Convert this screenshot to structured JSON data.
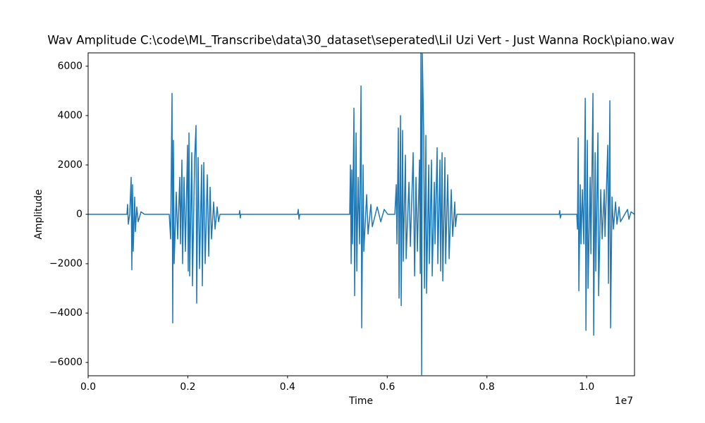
{
  "chart_data": {
    "type": "line",
    "title": "Wav Amplitude C:\\code\\ML_Transcribe\\data\\30_dataset\\seperated\\Lil Uzi Vert - Just Wanna Rock\\piano.wav",
    "x_label": "Time",
    "y_label": "Amplitude",
    "x_offset_label": "1e7",
    "xlim": [
      0,
      10960000
    ],
    "xticks": [
      {
        "value": 0,
        "label": "0.0"
      },
      {
        "value": 2000000,
        "label": "0.2"
      },
      {
        "value": 4000000,
        "label": "0.4"
      },
      {
        "value": 6000000,
        "label": "0.6"
      },
      {
        "value": 8000000,
        "label": "0.8"
      },
      {
        "value": 10000000,
        "label": "1.0"
      }
    ],
    "ylim": [
      -6540,
      6540
    ],
    "yticks": [
      {
        "value": -6000,
        "label": "−6000"
      },
      {
        "value": -4000,
        "label": "−4000"
      },
      {
        "value": -2000,
        "label": "−2000"
      },
      0,
      2000,
      4000,
      6000
    ],
    "grid": false,
    "series": [
      {
        "color": "#1f77b4",
        "x": [
          0,
          778000,
          792000,
          806000,
          834000,
          863000,
          877000,
          891000,
          905000,
          934000,
          948000,
          976000,
          1004000,
          1061000,
          1132000,
          1457000,
          1627000,
          1655000,
          1683000,
          1697000,
          1711000,
          1726000,
          1768000,
          1796000,
          1839000,
          1853000,
          1881000,
          1895000,
          1924000,
          1952000,
          1994000,
          2008000,
          2023000,
          2037000,
          2079000,
          2093000,
          2136000,
          2164000,
          2178000,
          2206000,
          2235000,
          2277000,
          2291000,
          2320000,
          2348000,
          2390000,
          2419000,
          2447000,
          2475000,
          2518000,
          2546000,
          2588000,
          2617000,
          2645000,
          3030000,
          3041000,
          3052000,
          3063000,
          4200000,
          4215000,
          4230000,
          4245000,
          5247000,
          5262000,
          5276000,
          5290000,
          5304000,
          5332000,
          5346000,
          5375000,
          5389000,
          5417000,
          5445000,
          5474000,
          5488000,
          5516000,
          5530000,
          5587000,
          5615000,
          5672000,
          5700000,
          5799000,
          5870000,
          5940000,
          6011000,
          6153000,
          6181000,
          6195000,
          6223000,
          6237000,
          6266000,
          6280000,
          6308000,
          6322000,
          6365000,
          6379000,
          6436000,
          6464000,
          6520000,
          6549000,
          6577000,
          6605000,
          6648000,
          6662000,
          6676000,
          6690000,
          6704000,
          6733000,
          6747000,
          6775000,
          6789000,
          6832000,
          6846000,
          6888000,
          6902000,
          6945000,
          6959000,
          7001000,
          7015000,
          7058000,
          7072000,
          7100000,
          7114000,
          7157000,
          7171000,
          7213000,
          7242000,
          7284000,
          7312000,
          7355000,
          7369000,
          7397000,
          9448000,
          9460000,
          9472000,
          9491000,
          9802000,
          9816000,
          9830000,
          9844000,
          9873000,
          9887000,
          9915000,
          9943000,
          9972000,
          9986000,
          10014000,
          10028000,
          10071000,
          10085000,
          10127000,
          10141000,
          10170000,
          10184000,
          10226000,
          10240000,
          10283000,
          10311000,
          10353000,
          10368000,
          10424000,
          10438000,
          10466000,
          10480000,
          10509000,
          10537000,
          10580000,
          10608000,
          10650000,
          10679000,
          10820000,
          10848000,
          10891000,
          10960000
        ],
        "values": [
          0,
          0,
          400,
          -400,
          0,
          1500,
          -2250,
          1200,
          -1500,
          700,
          -700,
          300,
          -300,
          100,
          0,
          0,
          0,
          -1000,
          4900,
          -4400,
          3000,
          -2000,
          900,
          -1000,
          1500,
          -1200,
          2200,
          -2000,
          1500,
          -1500,
          2800,
          -2300,
          3300,
          -2500,
          2500,
          -2900,
          2200,
          3600,
          -3600,
          2300,
          -2200,
          2000,
          -2900,
          2100,
          -2000,
          1600,
          -1700,
          1100,
          -1000,
          500,
          -600,
          300,
          -300,
          0,
          0,
          150,
          -150,
          0,
          0,
          200,
          -200,
          0,
          0,
          2000,
          -2000,
          1800,
          -1200,
          4300,
          -3300,
          3300,
          -2300,
          1500,
          -1200,
          5200,
          -4600,
          2000,
          -1500,
          800,
          -800,
          400,
          -500,
          300,
          -300,
          200,
          0,
          0,
          1200,
          -1200,
          3500,
          -3400,
          4000,
          -3700,
          3400,
          -1900,
          2400,
          -1800,
          1300,
          -1300,
          2500,
          -2500,
          1500,
          -1500,
          2200,
          -2400,
          6600,
          -6500,
          6500,
          3000,
          -3000,
          3200,
          -3200,
          2000,
          -2000,
          2200,
          -2500,
          1300,
          -1200,
          2700,
          -2000,
          2200,
          -2300,
          2500,
          -2700,
          2300,
          -2000,
          1600,
          -1800,
          1000,
          -900,
          500,
          -500,
          0,
          0,
          150,
          -150,
          0,
          0,
          -600,
          3100,
          -3100,
          1200,
          -1200,
          1000,
          -1200,
          4700,
          -4700,
          3000,
          -3000,
          1500,
          -1600,
          4900,
          -4900,
          2500,
          -2300,
          3300,
          -3300,
          1000,
          -1000,
          1000,
          -900,
          2800,
          -2800,
          4600,
          -4600,
          700,
          -600,
          500,
          -400,
          300,
          -300,
          200,
          -200,
          100,
          0
        ]
      }
    ]
  }
}
